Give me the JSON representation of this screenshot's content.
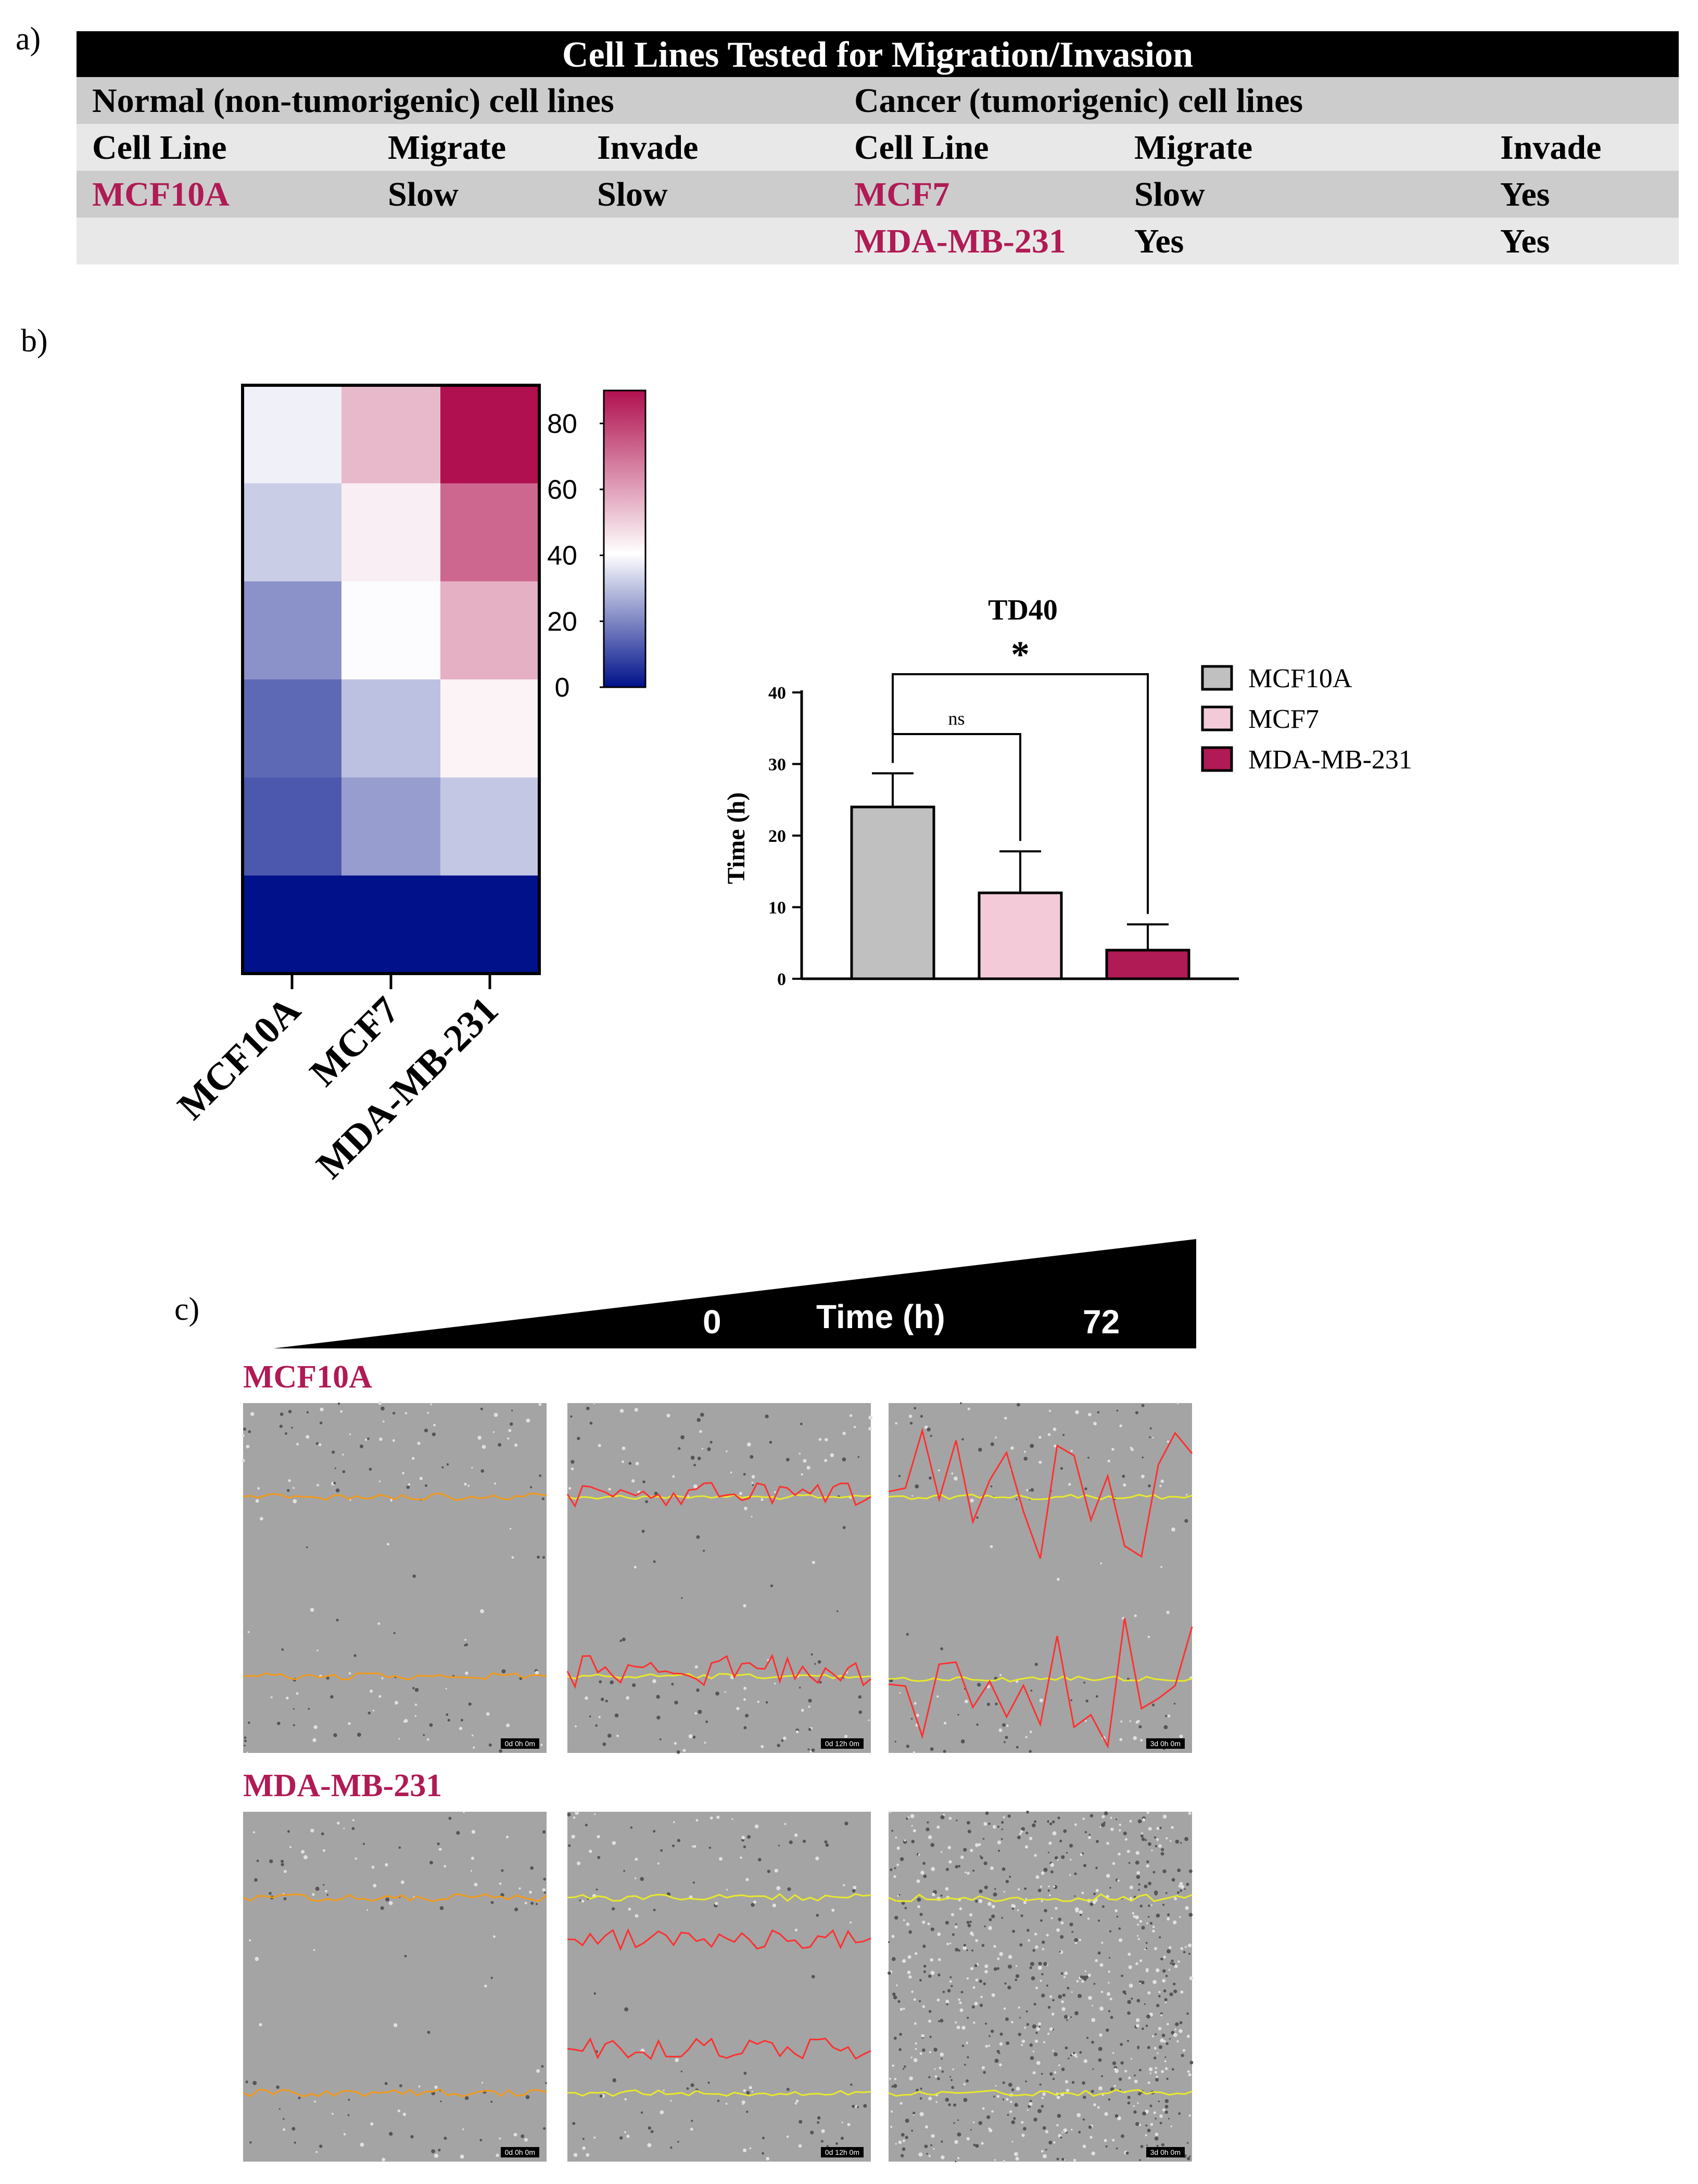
{
  "panel_labels": {
    "a": "a)",
    "b": "b)",
    "c": "c)"
  },
  "table": {
    "title": "Cell Lines Tested for Migration/Invasion",
    "normal_header": "Normal (non-tumorigenic) cell lines",
    "cancer_header": "Cancer (tumorigenic) cell lines",
    "col_headers": {
      "cell_line": "Cell Line",
      "migrate": "Migrate",
      "invade": "Invade"
    },
    "normal_rows": [
      {
        "cell_line": "MCF10A",
        "migrate": "Slow",
        "invade": "Slow"
      }
    ],
    "cancer_rows": [
      {
        "cell_line": "MCF7",
        "migrate": "Slow",
        "invade": "Yes"
      },
      {
        "cell_line": "MDA-MB-231",
        "migrate": "Yes",
        "invade": "Yes"
      }
    ]
  },
  "colors": {
    "magenta": "#b01a55",
    "low": "#00118a",
    "mid": "#ffffff",
    "high": "#b0104f",
    "bar_gray": "#c0c0c0",
    "bar_pink": "#f2cad8"
  },
  "chart_data": [
    {
      "type": "heatmap",
      "columns": [
        "MCF10A",
        "MCF7",
        "MDA-MB-231"
      ],
      "rows": 6,
      "values": [
        [
          38,
          55,
          90
        ],
        [
          32,
          44,
          72
        ],
        [
          22,
          40,
          57
        ],
        [
          15,
          30,
          43
        ],
        [
          12,
          24,
          31
        ],
        [
          0,
          0,
          0
        ]
      ],
      "colorbar": {
        "min": 0,
        "max": 90,
        "ticks": [
          0,
          20,
          40,
          60,
          80
        ]
      }
    },
    {
      "type": "bar",
      "title": "TD40",
      "ylabel": "Time (h)",
      "ylim": [
        0,
        40
      ],
      "yticks": [
        0,
        10,
        20,
        30,
        40
      ],
      "categories": [
        "MCF10A",
        "MCF7",
        "MDA-MB-231"
      ],
      "values": [
        24,
        12,
        4
      ],
      "errors": [
        4.7,
        5.8,
        3.6
      ],
      "legend": [
        "MCF10A",
        "MCF7",
        "MDA-MB-231"
      ],
      "significance": [
        {
          "from": "MCF10A",
          "to": "MCF7",
          "label": "ns"
        },
        {
          "from": "MCF10A",
          "to": "MDA-MB-231",
          "label": "*"
        }
      ]
    }
  ],
  "panel_c": {
    "time_start": "0",
    "time_label": "Time (h)",
    "time_end": "72",
    "rows": [
      {
        "label": "MCF10A",
        "timestamps": [
          "0d 0h 0m",
          "0d 12h 0m",
          "3d 0h 0m"
        ]
      },
      {
        "label": "MDA-MB-231",
        "timestamps": [
          "0d 0h 0m",
          "0d 12h 0m",
          "3d 0h 0m"
        ]
      }
    ]
  }
}
